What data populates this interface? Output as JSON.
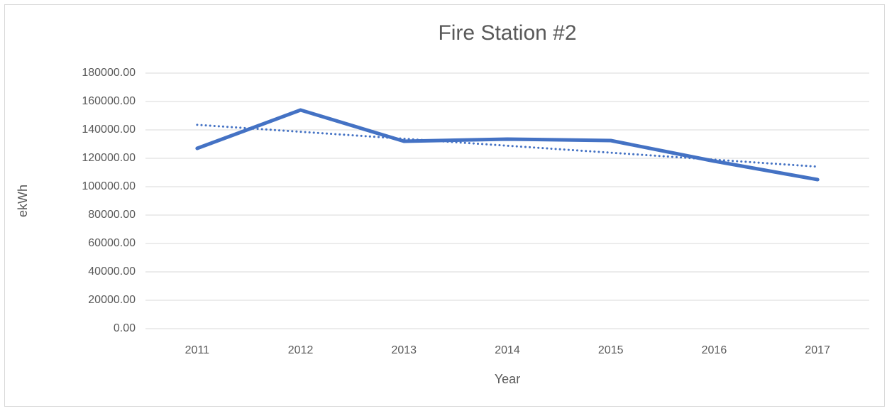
{
  "chart_data": {
    "type": "line",
    "title": "Fire Station #2",
    "x_label": "Year",
    "y_label": "ekWh",
    "categories": [
      "2011",
      "2012",
      "2013",
      "2014",
      "2015",
      "2016",
      "2017"
    ],
    "values": [
      127000,
      154000,
      132000,
      133500,
      132500,
      118000,
      105000
    ],
    "color": "#4472c4",
    "trendline": "linear",
    "ylim": [
      0,
      180000
    ],
    "yticks": [
      {
        "value": 0,
        "label": "0.00"
      },
      {
        "value": 20000,
        "label": "20000.00"
      },
      {
        "value": 40000,
        "label": "40000.00"
      },
      {
        "value": 60000,
        "label": "60000.00"
      },
      {
        "value": 80000,
        "label": "80000.00"
      },
      {
        "value": 100000,
        "label": "100000.00"
      },
      {
        "value": 120000,
        "label": "120000.00"
      },
      {
        "value": 140000,
        "label": "140000.00"
      },
      {
        "value": 160000,
        "label": "160000.00"
      },
      {
        "value": 180000,
        "label": "180000.00"
      }
    ],
    "grid": true
  }
}
